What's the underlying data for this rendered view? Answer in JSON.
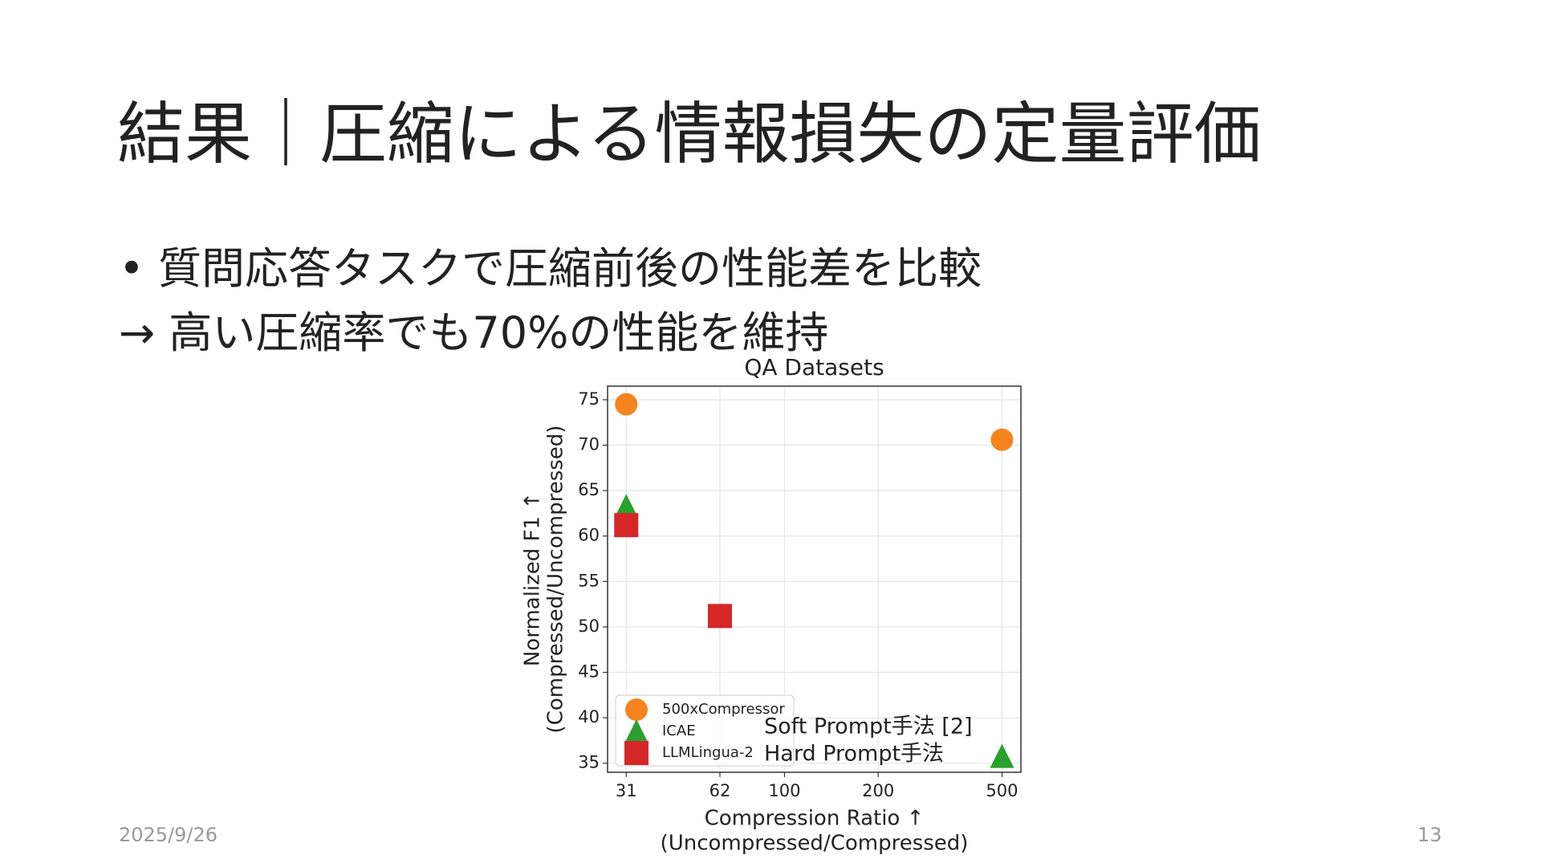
{
  "slide": {
    "title": "結果｜圧縮による情報損失の定量評価",
    "bullet": "質問応答タスクで圧縮前後の性能差を比較",
    "conclusion": "→ 高い圧縮率でも70%の性能を維持",
    "date": "2025/9/26",
    "page": "13"
  },
  "chart_data": {
    "type": "scatter",
    "title": "QA Datasets",
    "x_label": [
      "Compression Ratio ↑",
      "(Uncompressed/Compressed)"
    ],
    "y_label": [
      "Normalized F1 ↑",
      "(Compressed/Uncompressed)"
    ],
    "xscale": "log",
    "xlim": [
      27,
      575
    ],
    "xticks": [
      31,
      62,
      100,
      200,
      500
    ],
    "ylim": [
      34,
      76.5
    ],
    "yticks": [
      35,
      40,
      45,
      50,
      55,
      60,
      65,
      70,
      75
    ],
    "grid": true,
    "legend": "lower left",
    "series": [
      {
        "name": "500xCompressor",
        "color": "#f5841f",
        "marker": "circle",
        "x": [
          31,
          500
        ],
        "values": [
          74.5,
          70.6
        ]
      },
      {
        "name": "ICAE",
        "color": "#2ca02c",
        "marker": "triangle",
        "x": [
          31,
          500
        ],
        "values": [
          63.3,
          35.8
        ]
      },
      {
        "name": "LLMLingua-2",
        "color": "#d62728",
        "marker": "square",
        "x": [
          31,
          62
        ],
        "values": [
          61.2,
          51.2
        ]
      }
    ],
    "annotations": [
      "Soft Prompt手法 [2]",
      "Hard Prompt手法"
    ]
  }
}
